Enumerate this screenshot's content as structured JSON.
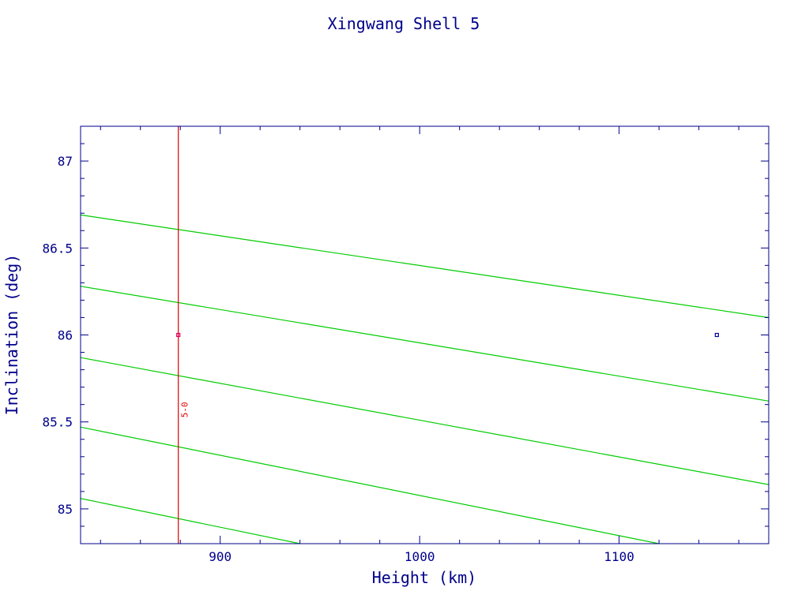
{
  "chart_data": {
    "type": "line",
    "title": "Xingwang Shell 5",
    "xlabel": "Height (km)",
    "ylabel": "Inclination (deg)",
    "xlim": [
      830,
      1175
    ],
    "ylim": [
      84.8,
      87.2
    ],
    "x_ticks": [
      {
        "value": 900,
        "label": "900"
      },
      {
        "value": 1000,
        "label": "1000"
      },
      {
        "value": 1100,
        "label": "1100"
      }
    ],
    "y_ticks": [
      {
        "value": 85,
        "label": "85"
      },
      {
        "value": 85.5,
        "label": "85.5"
      },
      {
        "value": 86,
        "label": "86"
      },
      {
        "value": 86.5,
        "label": "86.5"
      },
      {
        "value": 87,
        "label": "87"
      }
    ],
    "series": [
      {
        "values": [
          [
            830,
            86.69
          ],
          [
            1175,
            86.1
          ]
        ]
      },
      {
        "values": [
          [
            830,
            86.28
          ],
          [
            1175,
            85.62
          ]
        ]
      },
      {
        "values": [
          [
            830,
            85.87
          ],
          [
            1175,
            85.14
          ]
        ]
      },
      {
        "values": [
          [
            830,
            85.47
          ],
          [
            1120,
            84.8
          ]
        ]
      },
      {
        "values": [
          [
            830,
            85.06
          ],
          [
            940,
            84.8
          ]
        ]
      }
    ],
    "vertical_line": {
      "x": 879
    },
    "points": [
      {
        "x": 879,
        "y": 86.0,
        "color": "#dd0066"
      },
      {
        "x": 1149,
        "y": 86.0,
        "color": "#0000aa"
      }
    ],
    "annotation": {
      "text": "5-0",
      "x": 882,
      "y": 85.57
    },
    "colors": {
      "axis": "#00008b",
      "text": "#00008b",
      "series": "#00cc00",
      "vertical_line": "#dd0000"
    }
  }
}
